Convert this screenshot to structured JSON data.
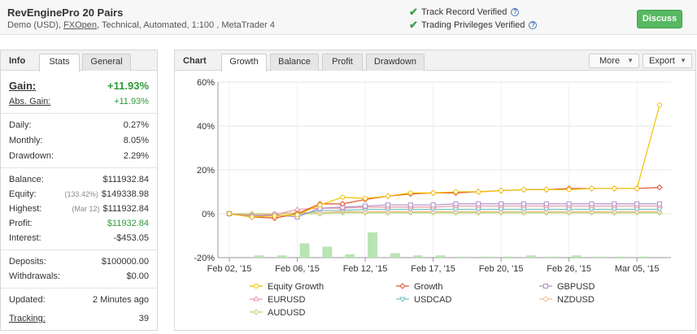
{
  "header": {
    "title": "RevEnginePro 20 Pairs",
    "sub_prefix": "Demo (USD), ",
    "broker": "FXOpen",
    "sub_suffix": ", Technical, Automated, 1:100 , MetaTrader 4",
    "verified_1": "Track Record Verified",
    "verified_2": "Trading Privileges Verified",
    "discuss": "Discuss"
  },
  "left_tabs": {
    "info": "Info",
    "stats": "Stats",
    "general": "General"
  },
  "stats": {
    "gain": {
      "label": "Gain:",
      "value": "+11.93%"
    },
    "abs_gain": {
      "label": "Abs. Gain:",
      "value": "+11.93%"
    },
    "daily": {
      "label": "Daily:",
      "value": "0.27%"
    },
    "monthly": {
      "label": "Monthly:",
      "value": "8.05%"
    },
    "drawdown": {
      "label": "Drawdown:",
      "value": "2.29%"
    },
    "balance": {
      "label": "Balance:",
      "value": "$111932.84"
    },
    "equity": {
      "label": "Equity:",
      "pre": "(133.42%)",
      "value": "$149338.98"
    },
    "highest": {
      "label": "Highest:",
      "pre": "(Mar 12)",
      "value": "$111932.84"
    },
    "profit": {
      "label": "Profit:",
      "value": "$11932.84"
    },
    "interest": {
      "label": "Interest:",
      "value": "-$453.05"
    },
    "deposits": {
      "label": "Deposits:",
      "value": "$100000.00"
    },
    "withdrawals": {
      "label": "Withdrawals:",
      "value": "$0.00"
    },
    "updated": {
      "label": "Updated:",
      "value": "2 Minutes ago"
    },
    "tracking": {
      "label": "Tracking:",
      "value": "39"
    }
  },
  "chart_panel": {
    "label": "Chart",
    "tabs": [
      "Growth",
      "Balance",
      "Profit",
      "Drawdown"
    ],
    "more": "More",
    "export": "Export"
  },
  "colors": {
    "equity_growth": "#f2c200",
    "growth": "#e0522a",
    "gbpusd": "#b08fc8",
    "eurusd": "#e99aa6",
    "usdcad": "#78c2c4",
    "nzdusd": "#f4b98c",
    "audusd": "#b5d86a",
    "bars": "#b9e4b4"
  },
  "chart_data": {
    "type": "line",
    "ylim": [
      -20,
      60
    ],
    "yticks": [
      "60%",
      "40%",
      "20%",
      "0%",
      "-20%"
    ],
    "ytick_values": [
      60,
      40,
      20,
      0,
      -20
    ],
    "xticks": [
      "Feb 02, '15",
      "Feb 06, '15",
      "Feb 12, '15",
      "Feb 17, '15",
      "Feb 20, '15",
      "Feb 26, '15",
      "Mar 05, '15"
    ],
    "xtick_index": [
      0,
      3,
      6,
      9,
      12,
      15,
      18
    ],
    "n": 20,
    "series": [
      {
        "name": "Equity Growth",
        "key": "equity_growth",
        "marker": "circle",
        "values": [
          0,
          -1.5,
          -1,
          -0.5,
          4,
          7.5,
          7,
          8,
          9.5,
          9.5,
          10,
          10,
          10.5,
          11,
          11,
          11,
          11.5,
          11.5,
          11.5,
          49.5
        ]
      },
      {
        "name": "Growth",
        "key": "growth",
        "marker": "diamond",
        "values": [
          0,
          -1.5,
          -2,
          0,
          4.5,
          4.5,
          6.5,
          8,
          9,
          9.5,
          9.5,
          10,
          10.5,
          11,
          11,
          11.5,
          11.5,
          11.5,
          11.5,
          12
        ]
      },
      {
        "name": "GBPUSD",
        "key": "gbpusd",
        "marker": "square",
        "values": [
          0,
          -1,
          -0.5,
          -1.5,
          2.5,
          3,
          3.5,
          4,
          4,
          4,
          4.5,
          4.5,
          4.5,
          4.5,
          4.5,
          4.5,
          4.5,
          4.5,
          4.5,
          4.5
        ]
      },
      {
        "name": "EURUSD",
        "key": "eurusd",
        "marker": "triangle-up",
        "values": [
          0,
          -1,
          -0.5,
          2,
          2.5,
          2.5,
          3,
          3,
          3,
          3,
          3.5,
          3.5,
          3.5,
          3.5,
          3.5,
          3.5,
          3.5,
          3.5,
          3.5,
          3.5
        ]
      },
      {
        "name": "USDCAD",
        "key": "usdcad",
        "marker": "triangle-down",
        "values": [
          0,
          -1,
          -1,
          -0.5,
          1.5,
          1.5,
          2,
          2,
          2,
          2,
          2,
          2,
          2,
          2,
          2,
          2,
          2,
          2,
          2,
          2
        ]
      },
      {
        "name": "NZDUSD",
        "key": "nzdusd",
        "marker": "circle",
        "values": [
          0,
          -0.5,
          0,
          0.5,
          0.5,
          1,
          1,
          1,
          1,
          1,
          1,
          1,
          1,
          1,
          1,
          1,
          1,
          1,
          1,
          1
        ]
      },
      {
        "name": "AUDUSD",
        "key": "audusd",
        "marker": "diamond",
        "values": [
          0,
          0,
          0,
          0,
          0,
          0.5,
          0.5,
          0.5,
          0.5,
          0.5,
          0.5,
          0.5,
          0.5,
          0.5,
          0.5,
          0.5,
          0.5,
          0.5,
          0.5,
          0.5
        ]
      }
    ],
    "bars": [
      {
        "i": 1,
        "value": -1
      },
      {
        "i": 2,
        "value": -1
      },
      {
        "i": 3,
        "value": -6.5
      },
      {
        "i": 4,
        "value": -5
      },
      {
        "i": 5,
        "value": -1.5
      },
      {
        "i": 6,
        "value": -1
      },
      {
        "i": 7,
        "value": -2
      },
      {
        "i": 8,
        "value": -1
      },
      {
        "i": 9,
        "value": -1
      },
      {
        "i": 10,
        "value": -0.5
      },
      {
        "i": 11,
        "value": -0.5
      },
      {
        "i": 12,
        "value": -0.5
      },
      {
        "i": 13,
        "value": -1
      },
      {
        "i": 14,
        "value": -0.5
      },
      {
        "i": 15,
        "value": -1
      },
      {
        "i": 16,
        "value": -0.5
      },
      {
        "i": 17,
        "value": -0.5
      },
      {
        "i": 18,
        "value": -0.5
      }
    ],
    "big_bar": {
      "i": 6,
      "value": -11.5
    },
    "legend_position": "bottom"
  }
}
